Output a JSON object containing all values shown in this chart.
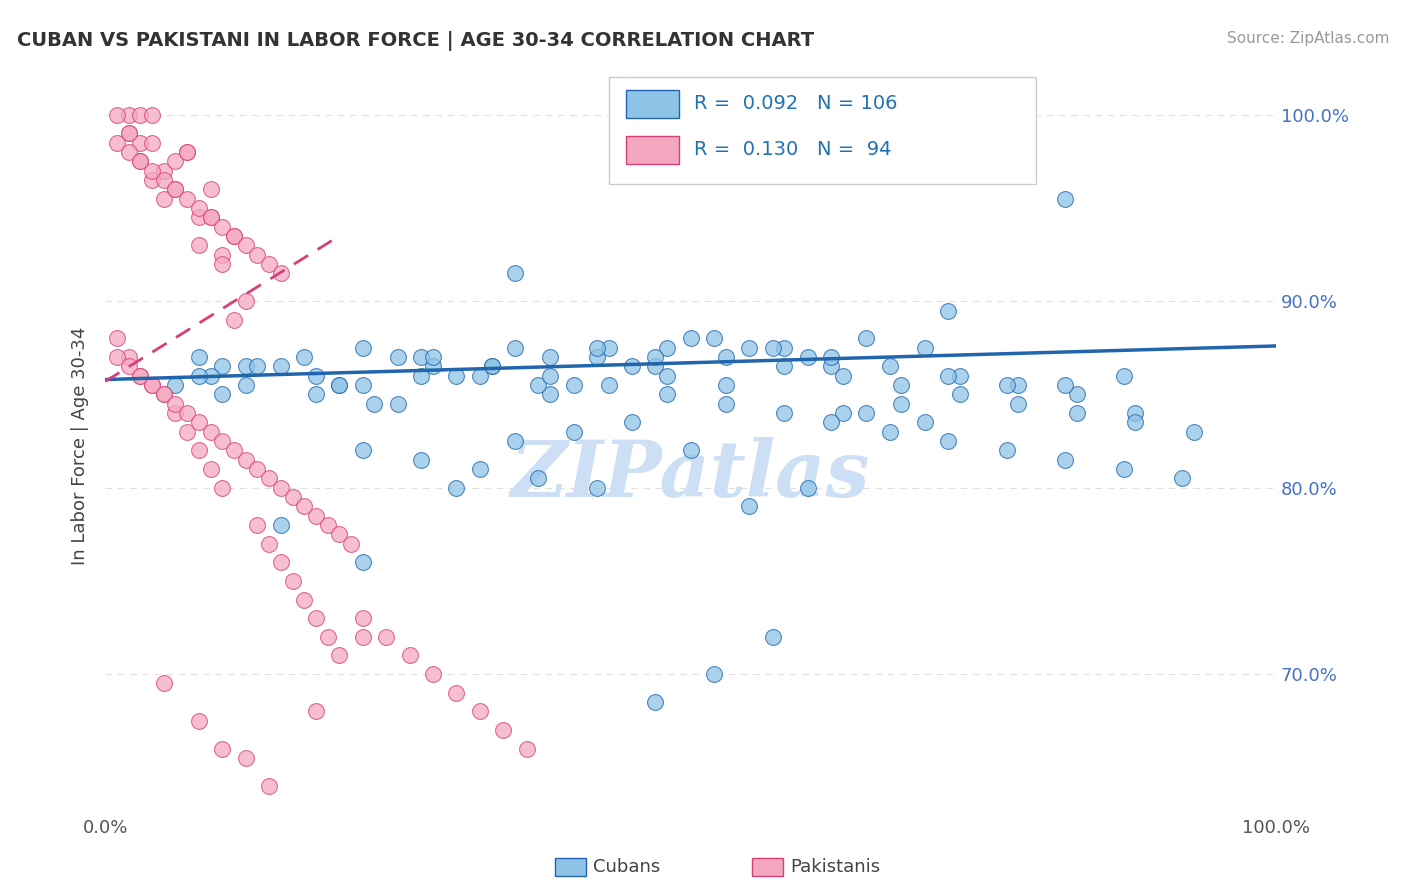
{
  "title": "CUBAN VS PAKISTANI IN LABOR FORCE | AGE 30-34 CORRELATION CHART",
  "source_text": "Source: ZipAtlas.com",
  "ylabel": "In Labor Force | Age 30-34",
  "xlim": [
    0.0,
    1.0
  ],
  "ylim": [
    0.625,
    1.02
  ],
  "yticks": [
    0.7,
    0.8,
    0.9,
    1.0
  ],
  "xticks": [
    0.0,
    0.2,
    0.4,
    0.6,
    0.8,
    1.0
  ],
  "xtick_labels": [
    "0.0%",
    "",
    "",
    "",
    "",
    "100.0%"
  ],
  "right_ytick_labels": [
    "70.0%",
    "80.0%",
    "90.0%",
    "100.0%"
  ],
  "right_ytick_positions": [
    0.7,
    0.8,
    0.9,
    1.0
  ],
  "color_blue": "#8ec4e8",
  "color_pink": "#f4a8c0",
  "color_trend_blue": "#2166ac",
  "color_trend_pink": "#d63f7a",
  "watermark": "ZIPatlas",
  "watermark_color": "#cddff5",
  "blue_scatter_x": [
    0.82,
    0.35,
    0.4,
    0.5,
    0.58,
    0.47,
    0.6,
    0.55,
    0.65,
    0.72,
    0.45,
    0.38,
    0.3,
    0.25,
    0.7,
    0.62,
    0.53,
    0.48,
    0.42,
    0.35,
    0.28,
    0.2,
    0.15,
    0.1,
    0.08,
    0.12,
    0.18,
    0.22,
    0.27,
    0.33,
    0.38,
    0.43,
    0.48,
    0.53,
    0.58,
    0.63,
    0.68,
    0.73,
    0.78,
    0.83,
    0.88,
    0.52,
    0.57,
    0.62,
    0.67,
    0.72,
    0.77,
    0.82,
    0.87,
    0.42,
    0.47,
    0.32,
    0.37,
    0.27,
    0.22,
    0.17,
    0.13,
    0.09,
    0.06,
    0.55,
    0.6,
    0.65,
    0.7,
    0.5,
    0.45,
    0.4,
    0.35,
    0.3,
    0.25,
    0.2,
    0.15,
    0.1,
    0.08,
    0.12,
    0.18,
    0.23,
    0.28,
    0.33,
    0.38,
    0.43,
    0.48,
    0.53,
    0.58,
    0.63,
    0.68,
    0.73,
    0.78,
    0.83,
    0.88,
    0.93,
    0.62,
    0.67,
    0.72,
    0.77,
    0.82,
    0.87,
    0.92,
    0.57,
    0.52,
    0.47,
    0.42,
    0.37,
    0.32,
    0.27,
    0.22,
    0.22
  ],
  "blue_scatter_y": [
    0.955,
    0.915,
    0.855,
    0.88,
    0.875,
    0.865,
    0.87,
    0.875,
    0.88,
    0.895,
    0.865,
    0.85,
    0.86,
    0.87,
    0.875,
    0.865,
    0.855,
    0.86,
    0.87,
    0.875,
    0.865,
    0.855,
    0.865,
    0.865,
    0.87,
    0.865,
    0.86,
    0.855,
    0.86,
    0.865,
    0.87,
    0.875,
    0.875,
    0.87,
    0.865,
    0.86,
    0.855,
    0.86,
    0.855,
    0.85,
    0.84,
    0.88,
    0.875,
    0.87,
    0.865,
    0.86,
    0.855,
    0.855,
    0.86,
    0.875,
    0.87,
    0.86,
    0.855,
    0.87,
    0.875,
    0.87,
    0.865,
    0.86,
    0.855,
    0.79,
    0.8,
    0.84,
    0.835,
    0.82,
    0.835,
    0.83,
    0.825,
    0.8,
    0.845,
    0.855,
    0.78,
    0.85,
    0.86,
    0.855,
    0.85,
    0.845,
    0.87,
    0.865,
    0.86,
    0.855,
    0.85,
    0.845,
    0.84,
    0.84,
    0.845,
    0.85,
    0.845,
    0.84,
    0.835,
    0.83,
    0.835,
    0.83,
    0.825,
    0.82,
    0.815,
    0.81,
    0.805,
    0.72,
    0.7,
    0.685,
    0.8,
    0.805,
    0.81,
    0.815,
    0.82,
    0.76
  ],
  "pink_scatter_x": [
    0.02,
    0.03,
    0.04,
    0.02,
    0.01,
    0.03,
    0.02,
    0.04,
    0.03,
    0.05,
    0.04,
    0.06,
    0.05,
    0.07,
    0.06,
    0.08,
    0.07,
    0.09,
    0.08,
    0.1,
    0.09,
    0.11,
    0.1,
    0.12,
    0.11,
    0.01,
    0.02,
    0.03,
    0.04,
    0.05,
    0.06,
    0.07,
    0.08,
    0.09,
    0.1,
    0.11,
    0.12,
    0.13,
    0.14,
    0.15,
    0.01,
    0.02,
    0.03,
    0.04,
    0.05,
    0.06,
    0.07,
    0.08,
    0.09,
    0.1,
    0.01,
    0.02,
    0.03,
    0.04,
    0.05,
    0.06,
    0.07,
    0.08,
    0.09,
    0.1,
    0.11,
    0.12,
    0.13,
    0.14,
    0.15,
    0.16,
    0.17,
    0.18,
    0.19,
    0.2,
    0.21,
    0.13,
    0.14,
    0.15,
    0.16,
    0.17,
    0.18,
    0.19,
    0.2,
    0.22,
    0.24,
    0.26,
    0.28,
    0.3,
    0.32,
    0.34,
    0.36,
    0.1,
    0.14,
    0.18,
    0.22,
    0.05,
    0.08,
    0.12
  ],
  "pink_scatter_y": [
    1.0,
    1.0,
    1.0,
    0.99,
    1.0,
    0.985,
    0.99,
    0.985,
    0.975,
    0.97,
    0.965,
    0.96,
    0.955,
    0.98,
    0.975,
    0.945,
    0.98,
    0.96,
    0.93,
    0.925,
    0.945,
    0.935,
    0.92,
    0.9,
    0.89,
    0.985,
    0.98,
    0.975,
    0.97,
    0.965,
    0.96,
    0.955,
    0.95,
    0.945,
    0.94,
    0.935,
    0.93,
    0.925,
    0.92,
    0.915,
    0.88,
    0.87,
    0.86,
    0.855,
    0.85,
    0.84,
    0.83,
    0.82,
    0.81,
    0.8,
    0.87,
    0.865,
    0.86,
    0.855,
    0.85,
    0.845,
    0.84,
    0.835,
    0.83,
    0.825,
    0.82,
    0.815,
    0.81,
    0.805,
    0.8,
    0.795,
    0.79,
    0.785,
    0.78,
    0.775,
    0.77,
    0.78,
    0.77,
    0.76,
    0.75,
    0.74,
    0.73,
    0.72,
    0.71,
    0.73,
    0.72,
    0.71,
    0.7,
    0.69,
    0.68,
    0.67,
    0.66,
    0.66,
    0.64,
    0.68,
    0.72,
    0.695,
    0.675,
    0.655
  ],
  "blue_trendline_x": [
    0.0,
    1.0
  ],
  "blue_trendline_y": [
    0.858,
    0.876
  ],
  "pink_trendline_x": [
    0.0,
    0.2
  ],
  "pink_trendline_y": [
    0.857,
    0.935
  ],
  "grid_color": "#e0e0e0",
  "background_color": "#ffffff",
  "legend_text": [
    "R =  0.092   N = 106",
    "R =  0.130   N =  94"
  ]
}
